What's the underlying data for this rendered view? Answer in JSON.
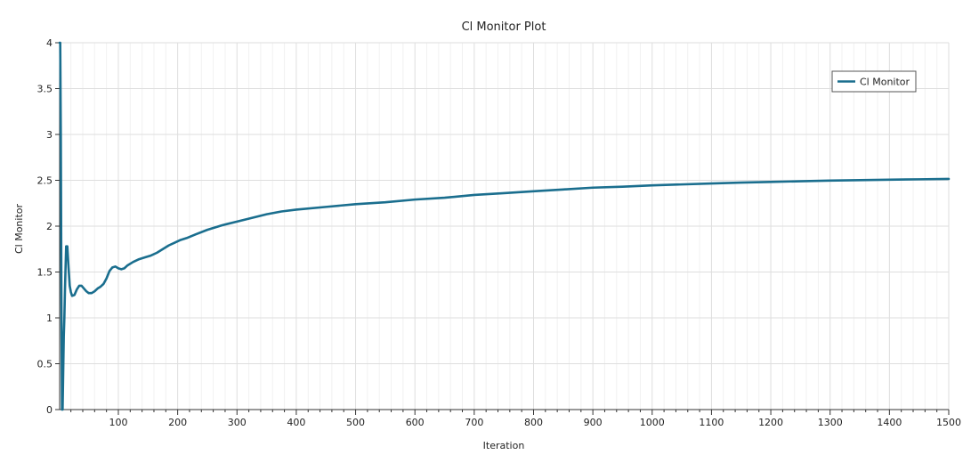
{
  "chart_data": {
    "type": "line",
    "title": "Cl Monitor Plot",
    "xlabel": "Iteration",
    "ylabel": "Cl Monitor",
    "xlim": [
      1,
      1500
    ],
    "ylim": [
      0,
      4
    ],
    "x_ticks": [
      100,
      200,
      300,
      400,
      500,
      600,
      700,
      800,
      900,
      1000,
      1100,
      1200,
      1300,
      1400,
      1500
    ],
    "x_minor_step": 20,
    "y_ticks": [
      0,
      0.5,
      1,
      1.5,
      2,
      2.5,
      3,
      3.5,
      4
    ],
    "y_tick_labels": [
      "0",
      "0.5",
      "1",
      "1.5",
      "2",
      "2.5",
      "3",
      "3.5",
      "4"
    ],
    "grid": true,
    "legend_position": "top-right",
    "series": [
      {
        "name": "Cl Monitor",
        "color": "#1a6e8e",
        "points": [
          [
            1,
            4.0
          ],
          [
            2,
            4.0
          ],
          [
            3,
            3.0
          ],
          [
            4,
            1.2
          ],
          [
            5,
            0.0
          ],
          [
            6,
            0.0
          ],
          [
            7,
            0.4
          ],
          [
            8,
            0.8
          ],
          [
            9,
            1.0
          ],
          [
            10,
            1.3
          ],
          [
            11,
            1.55
          ],
          [
            12,
            1.78
          ],
          [
            14,
            1.78
          ],
          [
            16,
            1.55
          ],
          [
            18,
            1.35
          ],
          [
            20,
            1.28
          ],
          [
            22,
            1.24
          ],
          [
            26,
            1.25
          ],
          [
            30,
            1.31
          ],
          [
            34,
            1.35
          ],
          [
            38,
            1.35
          ],
          [
            42,
            1.32
          ],
          [
            46,
            1.29
          ],
          [
            50,
            1.27
          ],
          [
            55,
            1.27
          ],
          [
            60,
            1.29
          ],
          [
            65,
            1.32
          ],
          [
            70,
            1.34
          ],
          [
            75,
            1.37
          ],
          [
            80,
            1.43
          ],
          [
            85,
            1.51
          ],
          [
            90,
            1.55
          ],
          [
            95,
            1.56
          ],
          [
            100,
            1.54
          ],
          [
            105,
            1.53
          ],
          [
            110,
            1.54
          ],
          [
            115,
            1.57
          ],
          [
            125,
            1.61
          ],
          [
            135,
            1.64
          ],
          [
            145,
            1.66
          ],
          [
            155,
            1.68
          ],
          [
            165,
            1.71
          ],
          [
            175,
            1.75
          ],
          [
            185,
            1.79
          ],
          [
            195,
            1.82
          ],
          [
            205,
            1.85
          ],
          [
            215,
            1.87
          ],
          [
            230,
            1.91
          ],
          [
            250,
            1.96
          ],
          [
            275,
            2.01
          ],
          [
            300,
            2.05
          ],
          [
            325,
            2.09
          ],
          [
            350,
            2.13
          ],
          [
            375,
            2.16
          ],
          [
            400,
            2.18
          ],
          [
            450,
            2.21
          ],
          [
            500,
            2.24
          ],
          [
            550,
            2.26
          ],
          [
            600,
            2.29
          ],
          [
            650,
            2.31
          ],
          [
            700,
            2.34
          ],
          [
            750,
            2.36
          ],
          [
            800,
            2.38
          ],
          [
            850,
            2.4
          ],
          [
            900,
            2.42
          ],
          [
            950,
            2.43
          ],
          [
            1000,
            2.445
          ],
          [
            1050,
            2.455
          ],
          [
            1100,
            2.465
          ],
          [
            1150,
            2.475
          ],
          [
            1200,
            2.482
          ],
          [
            1250,
            2.49
          ],
          [
            1300,
            2.497
          ],
          [
            1350,
            2.502
          ],
          [
            1400,
            2.507
          ],
          [
            1450,
            2.511
          ],
          [
            1500,
            2.515
          ]
        ]
      }
    ]
  }
}
